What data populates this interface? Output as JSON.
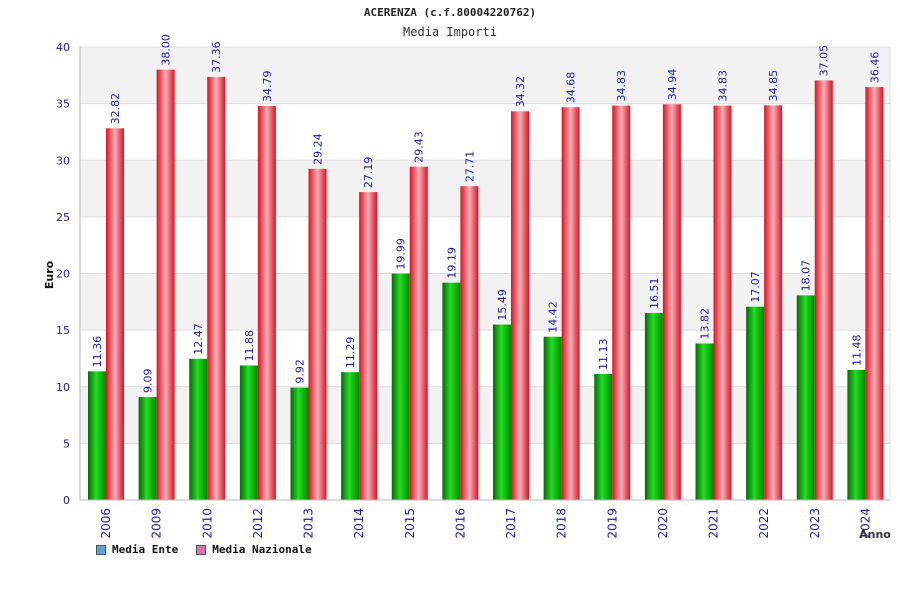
{
  "colors": {
    "ente": "#00b400",
    "ente_dark": "#007a00",
    "nazionale": "#e8202a",
    "nazionale_light": "#f4a0a8",
    "axis_text": "#1a1aa6",
    "legend_ente": "#5aa0e6",
    "legend_nazionale": "#e070a8",
    "band": "#f2f2f2"
  },
  "legend": {
    "ente_label": "Media Ente",
    "nazionale_label": "Media Nazionale"
  },
  "chart_data": {
    "type": "bar",
    "title": "ACERENZA (c.f.80004220762)",
    "subtitle": "Media Importi",
    "xlabel": "Anno",
    "ylabel": "Euro",
    "ylim": [
      0,
      40
    ],
    "yticks": [
      0,
      5,
      10,
      15,
      20,
      25,
      30,
      35,
      40
    ],
    "categories": [
      "2006",
      "2009",
      "2010",
      "2012",
      "2013",
      "2014",
      "2015",
      "2016",
      "2017",
      "2018",
      "2019",
      "2020",
      "2021",
      "2022",
      "2023",
      "2024"
    ],
    "series": [
      {
        "name": "Media Ente",
        "values": [
          11.36,
          9.09,
          12.47,
          11.88,
          9.92,
          11.29,
          19.99,
          19.19,
          15.49,
          14.42,
          11.13,
          16.51,
          13.82,
          17.07,
          18.07,
          11.48
        ]
      },
      {
        "name": "Media Nazionale",
        "values": [
          32.82,
          38.0,
          37.36,
          34.79,
          29.24,
          27.19,
          29.43,
          27.71,
          34.32,
          34.68,
          34.83,
          34.94,
          34.83,
          34.85,
          37.05,
          36.46
        ]
      }
    ]
  }
}
